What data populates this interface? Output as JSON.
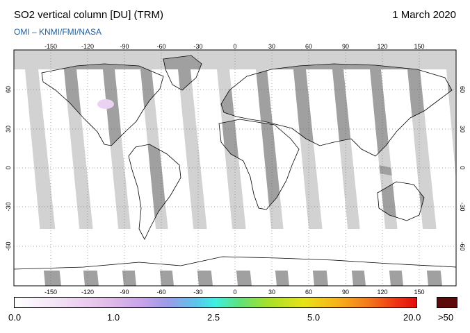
{
  "header": {
    "title": "SO2 vertical column [DU] (TRM)",
    "date": "1 March 2020",
    "credit": "OMI  –  KNMI/FMI/NASA"
  },
  "map": {
    "lon_ticks_top": [
      "-150",
      "-120",
      "-90",
      "-60",
      "-30",
      "0",
      "30",
      "60",
      "90",
      "120",
      "150"
    ],
    "lon_ticks_bottom": [
      "-150",
      "-120",
      "-90",
      "-60",
      "-30",
      "0",
      "30",
      "60",
      "90",
      "120",
      "150"
    ],
    "lat_ticks_left": [
      "60",
      "30",
      "0",
      "-30",
      "-60"
    ],
    "lat_ticks_right": [
      "60",
      "30",
      "0",
      "-30",
      "-60"
    ],
    "colors": {
      "land": "#a0a0a0",
      "ocean_nodata": "#d2d2d2",
      "valid": "#ffffff"
    }
  },
  "legend": {
    "labels": [
      "0.0",
      "1.0",
      "2.5",
      "5.0",
      "20.0"
    ],
    "overflow_label": ">50"
  }
}
